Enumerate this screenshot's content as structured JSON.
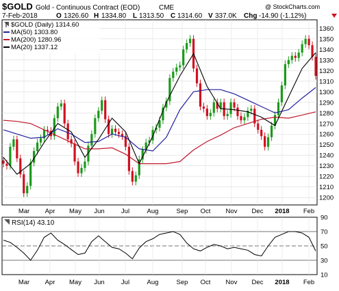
{
  "header": {
    "symbol": "$GOLD",
    "name": "Gold - Continuous Contract (EOD)",
    "exchange": "CME",
    "date": "7-Feb-2018",
    "open_label": "O",
    "open": "1326.60",
    "high_label": "H",
    "high": "1334.80",
    "low_label": "L",
    "low": "1313.50",
    "close_label": "C",
    "close": "1314.60",
    "volume_label": "V",
    "volume": "337.0K",
    "change_label": "Chg",
    "change": "-14.90 (-1.12%)",
    "watermark": "@ StockCharts.com"
  },
  "legend": [
    {
      "text": "$GOLD (Daily) 1314.60",
      "color": "#000000",
      "style": "candle"
    },
    {
      "text": "MA(50) 1303.80",
      "color": "#1f1f9e",
      "style": "line"
    },
    {
      "text": "MA(200) 1280.96",
      "color": "#c0182c",
      "style": "line"
    },
    {
      "text": "MA(20) 1337.12",
      "color": "#000000",
      "style": "line"
    }
  ],
  "rsi_label": "RSI(14) 43.10",
  "colors": {
    "up": "#1a9a1a",
    "down": "#d01020",
    "ma50": "#1f1f9e",
    "ma200": "#c0182c",
    "ma20": "#000000",
    "rsi": "#000000",
    "rsi_fill": "#b0b0b0"
  },
  "chart_data": [
    {
      "type": "line",
      "title": "$GOLD (Daily) 1314.60",
      "price_ylim": [
        1193,
        1368
      ],
      "price_ticks": [
        1200,
        1210,
        1220,
        1230,
        1240,
        1250,
        1260,
        1270,
        1280,
        1290,
        1300,
        1310,
        1320,
        1330,
        1340,
        1350,
        1360
      ],
      "x_ticks": [
        "Mar",
        "Apr",
        "May",
        "Jun",
        "Jul",
        "Aug",
        "Sep",
        "Oct",
        "Nov",
        "Dec",
        "2018",
        "Feb"
      ],
      "series": [
        {
          "name": "$GOLD (Daily)",
          "style": "candlestick",
          "x": [
            0,
            5,
            10,
            15,
            20,
            25,
            30,
            35,
            40,
            45,
            50,
            55,
            60,
            65,
            70,
            75,
            80,
            85,
            90,
            95,
            100,
            105,
            110,
            115,
            120,
            125,
            130,
            135,
            140,
            145,
            150,
            155,
            160,
            165,
            170,
            175,
            180,
            185,
            190,
            195,
            200,
            205,
            210,
            215,
            220,
            225,
            230,
            235,
            240,
            245,
            250,
            255,
            260,
            265,
            270,
            275,
            280,
            285,
            290,
            295,
            300,
            305,
            310,
            315,
            320,
            325,
            330,
            335,
            340,
            345,
            350,
            355,
            360,
            365,
            370,
            375,
            380,
            385,
            390,
            395,
            400,
            405,
            410,
            415,
            420,
            425,
            430,
            435,
            440,
            445,
            450,
            455,
            460
          ],
          "values": [
            1232,
            1230,
            1248,
            1255,
            1237,
            1222,
            1204,
            1211,
            1233,
            1244,
            1252,
            1256,
            1264,
            1263,
            1258,
            1275,
            1286,
            1289,
            1270,
            1255,
            1251,
            1234,
            1223,
            1228,
            1234,
            1249,
            1260,
            1275,
            1282,
            1292,
            1274,
            1260,
            1265,
            1262,
            1260,
            1258,
            1248,
            1225,
            1215,
            1221,
            1236,
            1245,
            1252,
            1254,
            1264,
            1266,
            1273,
            1285,
            1291,
            1313,
            1319,
            1323,
            1325,
            1340,
            1346,
            1350,
            1322,
            1308,
            1286,
            1284,
            1277,
            1280,
            1290,
            1284,
            1290,
            1277,
            1279,
            1290,
            1285,
            1277,
            1273,
            1276,
            1282,
            1284,
            1270,
            1264,
            1258,
            1248,
            1257,
            1268,
            1278,
            1290,
            1306,
            1326,
            1330,
            1334,
            1332,
            1337,
            1345,
            1350,
            1344,
            1333,
            1315
          ]
        },
        {
          "name": "MA(50)",
          "x": [
            0,
            20,
            40,
            60,
            80,
            100,
            120,
            140,
            160,
            180,
            200,
            220,
            240,
            260,
            280,
            300,
            320,
            340,
            360,
            380,
            400,
            420,
            440,
            460
          ],
          "values": [
            1264,
            1260,
            1256,
            1257,
            1265,
            1260,
            1252,
            1253,
            1260,
            1257,
            1246,
            1244,
            1257,
            1283,
            1300,
            1302,
            1302,
            1298,
            1292,
            1286,
            1280,
            1283,
            1294,
            1304
          ]
        },
        {
          "name": "MA(200)",
          "x": [
            0,
            20,
            40,
            60,
            80,
            100,
            120,
            140,
            160,
            180,
            200,
            220,
            240,
            260,
            280,
            300,
            320,
            340,
            360,
            380,
            400,
            420,
            440,
            460
          ],
          "values": [
            1273,
            1272,
            1270,
            1264,
            1258,
            1252,
            1246,
            1246,
            1247,
            1241,
            1232,
            1232,
            1232,
            1234,
            1245,
            1253,
            1259,
            1266,
            1270,
            1274,
            1276,
            1275,
            1278,
            1281
          ]
        },
        {
          "name": "MA(20)",
          "x": [
            0,
            20,
            40,
            60,
            80,
            100,
            120,
            140,
            160,
            180,
            200,
            220,
            240,
            260,
            280,
            300,
            320,
            340,
            360,
            380,
            400,
            420,
            440,
            460
          ],
          "values": [
            1238,
            1222,
            1232,
            1252,
            1270,
            1262,
            1238,
            1255,
            1275,
            1262,
            1232,
            1258,
            1290,
            1315,
            1336,
            1305,
            1284,
            1283,
            1281,
            1276,
            1268,
            1295,
            1322,
            1337
          ]
        }
      ]
    },
    {
      "type": "line",
      "title": "RSI(14) 43.10",
      "rsi_ylim": [
        10,
        90
      ],
      "rsi_ticks": [
        10,
        30,
        50,
        70,
        90
      ],
      "rsi_reference_lines": [
        30,
        50,
        70
      ],
      "series": [
        {
          "name": "RSI(14)",
          "x": [
            0,
            10,
            20,
            30,
            40,
            50,
            60,
            70,
            80,
            90,
            100,
            110,
            120,
            130,
            140,
            150,
            160,
            170,
            180,
            190,
            200,
            210,
            220,
            230,
            240,
            250,
            260,
            270,
            280,
            290,
            300,
            310,
            320,
            330,
            340,
            350,
            360,
            370,
            380,
            390,
            400,
            410,
            420,
            430,
            440,
            450,
            460
          ],
          "values": [
            58,
            55,
            48,
            40,
            30,
            44,
            62,
            68,
            58,
            52,
            45,
            38,
            40,
            56,
            64,
            56,
            48,
            46,
            40,
            32,
            47,
            56,
            60,
            66,
            68,
            70,
            66,
            54,
            46,
            43,
            48,
            52,
            50,
            46,
            48,
            46,
            44,
            38,
            36,
            50,
            62,
            66,
            70,
            70,
            68,
            62,
            43
          ]
        }
      ]
    }
  ]
}
